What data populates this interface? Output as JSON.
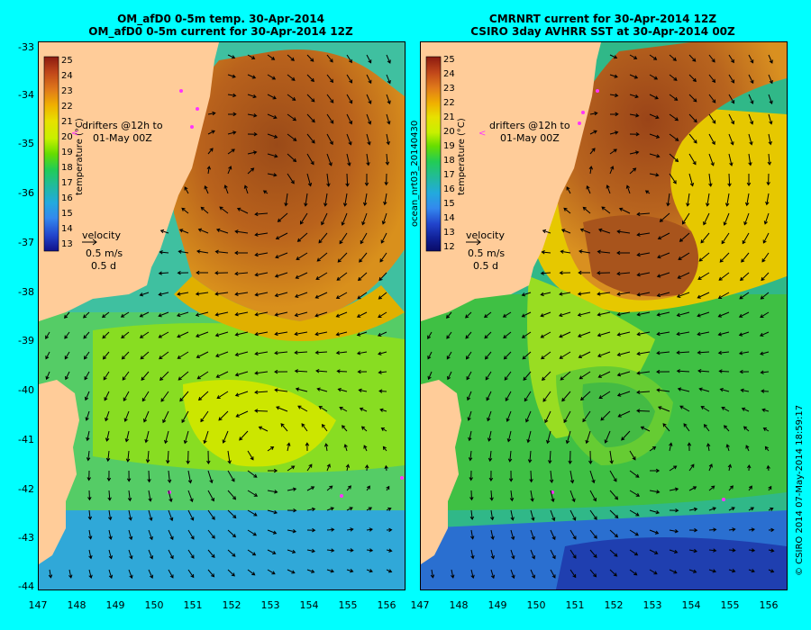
{
  "panels": [
    {
      "id": "left",
      "title_line1": "OM_afD0 0-5m temp. 30-Apr-2014",
      "title_line2": "OM_afD0 0-5m current for 30-Apr-2014 12Z",
      "colorbar_ticks": [
        "25",
        "24",
        "23",
        "22",
        "21",
        "20",
        "19",
        "18",
        "17",
        "16",
        "15",
        "14",
        "13"
      ],
      "colorbar_label": "temperature (°C)",
      "drifter_note_line1": "drifters @12h to",
      "drifter_note_line2": "01-May 00Z",
      "velocity_label": "velocity",
      "velocity_scale_1": "0.5 m/s",
      "velocity_scale_2": "0.5 d"
    },
    {
      "id": "right",
      "title_line1": "CMRNRT current for 30-Apr-2014 12Z",
      "title_line2": "CSIRO 3day AVHRR SST at 30-Apr-2014 00Z",
      "colorbar_ticks": [
        "25",
        "24",
        "23",
        "22",
        "21",
        "20",
        "19",
        "18",
        "17",
        "16",
        "15",
        "14",
        "13",
        "12"
      ],
      "colorbar_label": "temperature (°C)",
      "drifter_note_line1": "drifters @12h to",
      "drifter_note_line2": "01-May 00Z",
      "velocity_label": "velocity",
      "velocity_scale_1": "0.5 m/s",
      "velocity_scale_2": "0.5 d"
    }
  ],
  "y_axis_labels": [
    "-33",
    "-34",
    "-35",
    "-36",
    "-37",
    "-38",
    "-39",
    "-40",
    "-41",
    "-42",
    "-43",
    "-44"
  ],
  "x_axis_labels_left": [
    "147",
    "148",
    "149",
    "150",
    "151",
    "152",
    "153",
    "154",
    "155",
    "156"
  ],
  "x_axis_labels_right": [
    "147",
    "148",
    "149",
    "150",
    "151",
    "152",
    "153",
    "154",
    "155",
    "156"
  ],
  "side_text_run": "ocean_nrt03_20140430",
  "side_text_stamp": "© CSIRO 2014  07-May-2014 18:59:17",
  "colors": {
    "background": "#00ffff",
    "land": "#ffcc99",
    "warm_core": "#b05a20",
    "drifter": "#ff33ff"
  }
}
